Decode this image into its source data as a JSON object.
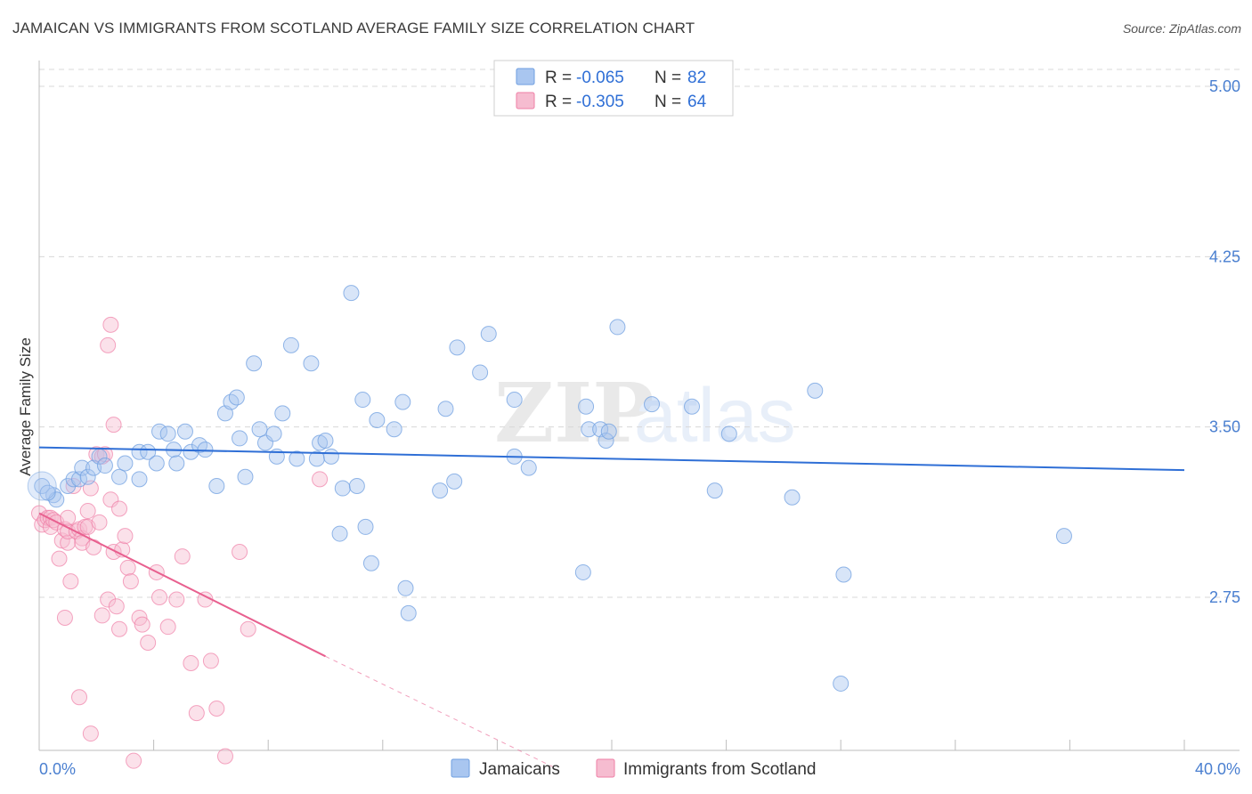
{
  "title": "JAMAICAN VS IMMIGRANTS FROM SCOTLAND AVERAGE FAMILY SIZE CORRELATION CHART",
  "source": "Source: ZipAtlas.com",
  "watermark": "ZIPatlas",
  "colors": {
    "blue": "#6f9fe0",
    "blue_fill": "#a9c6f0",
    "blue_line": "#2f6fd6",
    "pink": "#ef7fa6",
    "pink_fill": "#f6bcd0",
    "pink_line": "#e8608f",
    "grid": "#d8d8d8",
    "axis_text": "#4a7fd0"
  },
  "legend": {
    "rows": [
      {
        "r_label": "R = ",
        "r_value": "-0.065",
        "n_label": "N = ",
        "n_value": "82"
      },
      {
        "r_label": "R = ",
        "r_value": "-0.305",
        "n_label": "N = ",
        "n_value": "64"
      }
    ]
  },
  "chart_data": {
    "type": "scatter",
    "title": "JAMAICAN VS IMMIGRANTS FROM SCOTLAND AVERAGE FAMILY SIZE CORRELATION CHART",
    "xlabel": "",
    "ylabel": "Average Family Size",
    "xlim": [
      0,
      40
    ],
    "ylim": [
      2.0,
      5.2
    ],
    "x_tick_labels": [
      "0.0%",
      "40.0%"
    ],
    "y_ticks": [
      2.75,
      3.5,
      4.25,
      5.0
    ],
    "y_tick_labels": [
      "2.75",
      "3.50",
      "4.25",
      "5.00"
    ],
    "series": [
      {
        "name": "Jamaicans",
        "r": -0.065,
        "n": 82,
        "trend": {
          "x0": 0,
          "y0": 3.41,
          "x1": 40,
          "y1": 3.31
        },
        "points": [
          [
            0.1,
            3.24
          ],
          [
            0.5,
            3.2
          ],
          [
            0.6,
            3.18
          ],
          [
            1.0,
            3.24
          ],
          [
            1.2,
            3.27
          ],
          [
            1.4,
            3.27
          ],
          [
            1.5,
            3.32
          ],
          [
            1.7,
            3.28
          ],
          [
            1.9,
            3.32
          ],
          [
            2.1,
            3.37
          ],
          [
            2.3,
            3.33
          ],
          [
            2.8,
            3.28
          ],
          [
            3.0,
            3.34
          ],
          [
            3.5,
            3.27
          ],
          [
            3.5,
            3.39
          ],
          [
            3.8,
            3.39
          ],
          [
            4.1,
            3.34
          ],
          [
            4.2,
            3.48
          ],
          [
            4.5,
            3.47
          ],
          [
            4.7,
            3.4
          ],
          [
            4.8,
            3.34
          ],
          [
            5.1,
            3.48
          ],
          [
            5.3,
            3.39
          ],
          [
            5.6,
            3.42
          ],
          [
            5.8,
            3.4
          ],
          [
            6.2,
            3.24
          ],
          [
            6.5,
            3.56
          ],
          [
            6.7,
            3.61
          ],
          [
            6.9,
            3.63
          ],
          [
            7.0,
            3.45
          ],
          [
            7.2,
            3.28
          ],
          [
            7.5,
            3.78
          ],
          [
            7.7,
            3.49
          ],
          [
            7.9,
            3.43
          ],
          [
            8.2,
            3.47
          ],
          [
            8.3,
            3.37
          ],
          [
            8.5,
            3.56
          ],
          [
            8.8,
            3.86
          ],
          [
            9.0,
            3.36
          ],
          [
            9.5,
            3.78
          ],
          [
            9.7,
            3.36
          ],
          [
            9.8,
            3.43
          ],
          [
            10.0,
            3.44
          ],
          [
            10.2,
            3.37
          ],
          [
            10.5,
            3.03
          ],
          [
            10.6,
            3.23
          ],
          [
            10.9,
            4.09
          ],
          [
            11.1,
            3.24
          ],
          [
            11.3,
            3.62
          ],
          [
            11.4,
            3.06
          ],
          [
            11.6,
            2.9
          ],
          [
            11.8,
            3.53
          ],
          [
            12.4,
            3.49
          ],
          [
            12.7,
            3.61
          ],
          [
            12.8,
            2.79
          ],
          [
            12.9,
            2.68
          ],
          [
            14.0,
            3.22
          ],
          [
            14.2,
            3.58
          ],
          [
            14.5,
            3.26
          ],
          [
            14.6,
            3.85
          ],
          [
            15.4,
            3.74
          ],
          [
            15.7,
            3.91
          ],
          [
            16.6,
            3.62
          ],
          [
            16.6,
            3.37
          ],
          [
            17.1,
            3.32
          ],
          [
            19.0,
            2.86
          ],
          [
            19.1,
            3.59
          ],
          [
            19.2,
            3.49
          ],
          [
            19.6,
            3.49
          ],
          [
            19.8,
            3.44
          ],
          [
            19.9,
            3.48
          ],
          [
            20.2,
            3.94
          ],
          [
            21.4,
            3.6
          ],
          [
            22.8,
            3.59
          ],
          [
            23.6,
            3.22
          ],
          [
            24.1,
            3.47
          ],
          [
            26.3,
            3.19
          ],
          [
            27.1,
            3.66
          ],
          [
            28.0,
            2.37
          ],
          [
            28.1,
            2.85
          ],
          [
            35.8,
            3.02
          ],
          [
            0.3,
            3.21
          ]
        ]
      },
      {
        "name": "Immigrants from Scotland",
        "r": -0.305,
        "n": 64,
        "trend": {
          "x0": 0,
          "y0": 3.12,
          "x1": 10,
          "y1": 2.49,
          "dash_to_x": 18,
          "dash_to_y": 2.0
        },
        "points": [
          [
            0.0,
            3.12
          ],
          [
            0.1,
            3.07
          ],
          [
            0.2,
            3.09
          ],
          [
            0.3,
            3.1
          ],
          [
            0.4,
            3.1
          ],
          [
            0.4,
            3.06
          ],
          [
            0.5,
            3.09
          ],
          [
            0.6,
            3.08
          ],
          [
            0.7,
            2.92
          ],
          [
            0.8,
            3.0
          ],
          [
            0.9,
            3.05
          ],
          [
            1.0,
            2.99
          ],
          [
            1.0,
            3.04
          ],
          [
            1.1,
            2.82
          ],
          [
            1.2,
            3.24
          ],
          [
            1.3,
            3.04
          ],
          [
            1.4,
            3.05
          ],
          [
            1.5,
            3.01
          ],
          [
            1.5,
            2.99
          ],
          [
            1.6,
            3.06
          ],
          [
            1.7,
            3.13
          ],
          [
            1.7,
            3.06
          ],
          [
            1.8,
            3.23
          ],
          [
            1.9,
            2.97
          ],
          [
            2.0,
            3.38
          ],
          [
            2.1,
            3.08
          ],
          [
            2.2,
            3.37
          ],
          [
            2.2,
            2.67
          ],
          [
            2.3,
            3.38
          ],
          [
            2.4,
            2.74
          ],
          [
            2.5,
            3.18
          ],
          [
            2.6,
            2.95
          ],
          [
            2.7,
            2.71
          ],
          [
            2.8,
            3.14
          ],
          [
            2.8,
            2.61
          ],
          [
            2.9,
            2.96
          ],
          [
            3.0,
            3.02
          ],
          [
            3.1,
            2.88
          ],
          [
            3.2,
            2.82
          ],
          [
            3.5,
            2.66
          ],
          [
            3.6,
            2.63
          ],
          [
            3.8,
            2.55
          ],
          [
            4.1,
            2.86
          ],
          [
            4.2,
            2.75
          ],
          [
            4.5,
            2.62
          ],
          [
            4.8,
            2.74
          ],
          [
            5.0,
            2.93
          ],
          [
            5.3,
            2.46
          ],
          [
            5.5,
            2.24
          ],
          [
            5.8,
            2.74
          ],
          [
            6.0,
            2.47
          ],
          [
            6.2,
            2.26
          ],
          [
            6.5,
            2.05
          ],
          [
            7.0,
            2.95
          ],
          [
            7.3,
            2.61
          ],
          [
            1.0,
            3.1
          ],
          [
            2.4,
            3.86
          ],
          [
            2.5,
            3.95
          ],
          [
            2.6,
            3.51
          ],
          [
            0.9,
            2.66
          ],
          [
            1.4,
            2.31
          ],
          [
            1.8,
            2.15
          ],
          [
            3.3,
            2.03
          ],
          [
            9.8,
            3.27
          ]
        ]
      }
    ]
  },
  "bottom_legend": [
    {
      "label": "Jamaicans"
    },
    {
      "label": "Immigrants from Scotland"
    }
  ]
}
